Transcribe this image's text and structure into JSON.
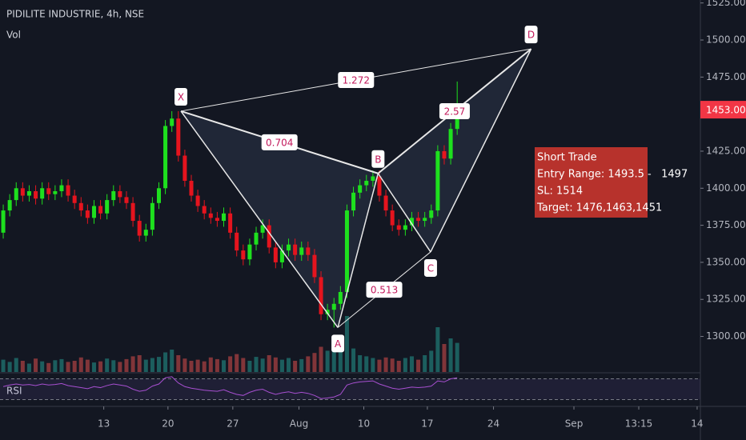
{
  "chart_data": {
    "type": "candlestick",
    "title": "PIDILITE INDUSTRIE, 4h, NSE",
    "volume_label": "Vol",
    "rsi_label": "RSI",
    "up_color": "#1ee01e",
    "down_color": "#e5141e",
    "volume_up_color": "#26a69a",
    "volume_down_color": "#ef5350",
    "open": [
      1370,
      1385,
      1392,
      1400,
      1395,
      1398,
      1393,
      1400,
      1396,
      1398,
      1402,
      1395,
      1390,
      1385,
      1380,
      1388,
      1383,
      1392,
      1398,
      1394,
      1390,
      1378,
      1368,
      1372,
      1390,
      1400,
      1442,
      1447,
      1422,
      1405,
      1395,
      1388,
      1383,
      1380,
      1378,
      1383,
      1370,
      1358,
      1352,
      1362,
      1370,
      1375,
      1360,
      1350,
      1358,
      1362,
      1355,
      1360,
      1355,
      1340,
      1315,
      1318,
      1322,
      1330,
      1385,
      1397,
      1402,
      1405,
      1408,
      1395,
      1385,
      1375,
      1372,
      1375,
      1380,
      1378,
      1380,
      1385,
      1425,
      1420,
      1440
    ],
    "high": [
      1389,
      1396,
      1404,
      1404,
      1402,
      1402,
      1404,
      1404,
      1402,
      1406,
      1406,
      1399,
      1394,
      1389,
      1392,
      1392,
      1396,
      1402,
      1402,
      1398,
      1394,
      1382,
      1376,
      1394,
      1404,
      1446,
      1452,
      1452,
      1426,
      1409,
      1399,
      1392,
      1387,
      1384,
      1387,
      1387,
      1374,
      1362,
      1366,
      1374,
      1379,
      1379,
      1364,
      1362,
      1366,
      1366,
      1364,
      1364,
      1359,
      1344,
      1322,
      1326,
      1334,
      1389,
      1401,
      1406,
      1409,
      1412,
      1412,
      1399,
      1389,
      1379,
      1379,
      1384,
      1384,
      1384,
      1389,
      1429,
      1429,
      1444,
      1472
    ],
    "low": [
      1366,
      1381,
      1388,
      1391,
      1391,
      1389,
      1389,
      1392,
      1392,
      1394,
      1391,
      1386,
      1381,
      1376,
      1376,
      1379,
      1379,
      1388,
      1390,
      1386,
      1374,
      1364,
      1364,
      1368,
      1386,
      1396,
      1438,
      1418,
      1401,
      1391,
      1384,
      1379,
      1376,
      1374,
      1374,
      1366,
      1354,
      1348,
      1348,
      1358,
      1366,
      1356,
      1346,
      1346,
      1354,
      1351,
      1351,
      1351,
      1336,
      1311,
      1311,
      1306,
      1318,
      1326,
      1381,
      1393,
      1398,
      1401,
      1391,
      1381,
      1371,
      1368,
      1368,
      1371,
      1374,
      1374,
      1376,
      1381,
      1416,
      1416,
      1436
    ],
    "close": [
      1385,
      1392,
      1400,
      1395,
      1398,
      1393,
      1400,
      1396,
      1398,
      1402,
      1395,
      1390,
      1385,
      1380,
      1388,
      1383,
      1392,
      1398,
      1394,
      1390,
      1378,
      1368,
      1372,
      1390,
      1400,
      1442,
      1447,
      1422,
      1405,
      1395,
      1388,
      1383,
      1380,
      1378,
      1383,
      1370,
      1358,
      1352,
      1362,
      1370,
      1375,
      1360,
      1350,
      1358,
      1362,
      1355,
      1360,
      1355,
      1340,
      1315,
      1318,
      1322,
      1330,
      1385,
      1397,
      1402,
      1405,
      1408,
      1395,
      1385,
      1375,
      1372,
      1375,
      1380,
      1378,
      1380,
      1385,
      1425,
      1420,
      1440,
      1450
    ],
    "volume": [
      22,
      18,
      25,
      20,
      15,
      24,
      19,
      16,
      21,
      23,
      18,
      20,
      26,
      22,
      17,
      19,
      24,
      21,
      18,
      23,
      28,
      30,
      22,
      25,
      27,
      35,
      40,
      30,
      24,
      20,
      22,
      19,
      26,
      23,
      21,
      28,
      32,
      25,
      20,
      27,
      24,
      30,
      26,
      22,
      25,
      20,
      23,
      28,
      34,
      45,
      38,
      40,
      60,
      100,
      42,
      30,
      28,
      25,
      22,
      26,
      24,
      20,
      25,
      28,
      22,
      30,
      38,
      80,
      50,
      60,
      52
    ],
    "vlim": [
      0,
      100
    ],
    "rsi": [
      55,
      58,
      60,
      58,
      59,
      57,
      60,
      58,
      59,
      61,
      57,
      55,
      53,
      51,
      55,
      53,
      57,
      60,
      58,
      56,
      50,
      46,
      48,
      56,
      60,
      72,
      74,
      62,
      55,
      52,
      50,
      48,
      47,
      46,
      49,
      44,
      40,
      38,
      44,
      48,
      50,
      44,
      40,
      43,
      45,
      42,
      44,
      42,
      38,
      32,
      33,
      35,
      40,
      58,
      62,
      64,
      65,
      66,
      60,
      56,
      52,
      50,
      52,
      54,
      53,
      54,
      56,
      66,
      64,
      70,
      72
    ],
    "rsi_lim": [
      20,
      80
    ],
    "rsi_levels": [
      70,
      30
    ],
    "xlim": [
      -0.5,
      107.5
    ],
    "xticks": [
      {
        "value": 15.5,
        "label": "13"
      },
      {
        "value": 25.4,
        "label": "20"
      },
      {
        "value": 35.4,
        "label": "27"
      },
      {
        "value": 45.6,
        "label": "Aug"
      },
      {
        "value": 55.6,
        "label": "10"
      },
      {
        "value": 65.4,
        "label": "17"
      },
      {
        "value": 75.6,
        "label": "24"
      },
      {
        "value": 88,
        "label": "Sep"
      },
      {
        "value": 98,
        "label": "13:15"
      },
      {
        "value": 107,
        "label": "14"
      }
    ],
    "ylim": [
      1276,
      1527
    ],
    "yticks": [
      {
        "value": 1300,
        "label": "1300.00"
      },
      {
        "value": 1325,
        "label": "1325.00"
      },
      {
        "value": 1350,
        "label": "1350.00"
      },
      {
        "value": 1375,
        "label": "1375.00"
      },
      {
        "value": 1400,
        "label": "1400.00"
      },
      {
        "value": 1425,
        "label": "1425.00"
      },
      {
        "value": 1475,
        "label": "1475.00"
      },
      {
        "value": 1500,
        "label": "1500.00"
      },
      {
        "value": 1525,
        "label": "1525.00"
      }
    ],
    "last_price": {
      "value": 1453,
      "label": "1453.00",
      "color": "#f23645"
    },
    "pattern": {
      "points": [
        {
          "label": "X",
          "x": 27.4,
          "price": 1452,
          "side": "above"
        },
        {
          "label": "A",
          "x": 51.6,
          "price": 1306,
          "side": "below"
        },
        {
          "label": "B",
          "x": 57.8,
          "price": 1410,
          "side": "above"
        },
        {
          "label": "C",
          "x": 65.9,
          "price": 1357,
          "side": "below"
        },
        {
          "label": "D",
          "x": 81.4,
          "price": 1494,
          "side": "above"
        }
      ],
      "ratios": [
        {
          "between": [
            0,
            4
          ],
          "label": "1.272"
        },
        {
          "between": [
            0,
            2
          ],
          "label": "0.704"
        },
        {
          "between": [
            1,
            3
          ],
          "label": "0.513"
        },
        {
          "between": [
            2,
            4
          ],
          "label": "2.57"
        }
      ]
    },
    "annotation": {
      "color": "#b7322c",
      "lines": [
        "Short Trade",
        "Entry Range: 1493.5 -   1497",
        "SL: 1514",
        "Target: 1476,1463,1451"
      ]
    }
  }
}
